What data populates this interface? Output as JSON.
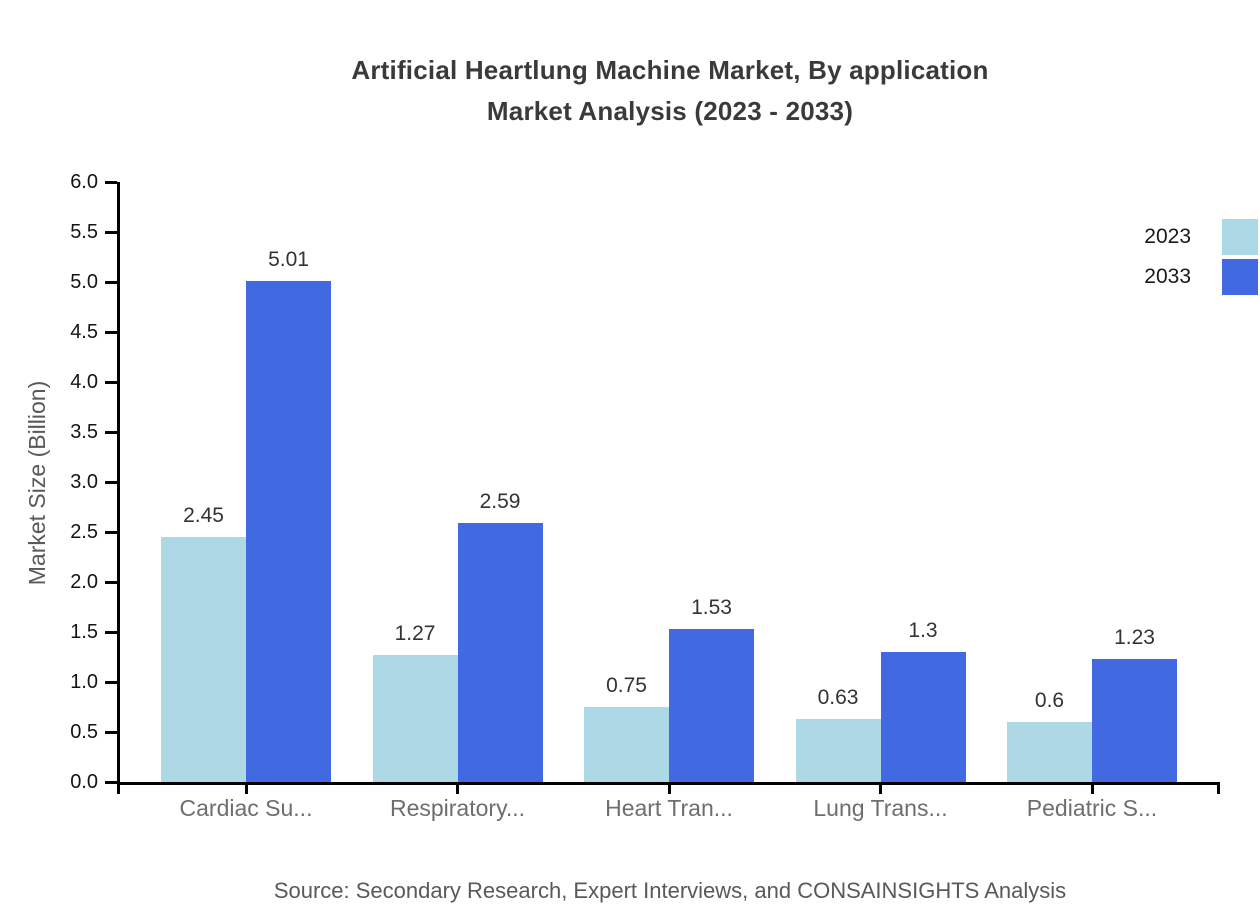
{
  "title": {
    "line1": "Artificial Heartlung Machine Market, By application",
    "line2": "Market Analysis (2023 - 2033)"
  },
  "y_axis": {
    "label": "Market Size (Billion)",
    "ticks": [
      "6.0",
      "5.5",
      "5.0",
      "4.5",
      "4.0",
      "3.5",
      "3.0",
      "2.5",
      "2.0",
      "1.5",
      "1.0",
      "0.5",
      "0.0"
    ],
    "min": 0,
    "max": 6,
    "step": 0.5
  },
  "legend": [
    {
      "label": "2023",
      "color": "#ADD8E6"
    },
    {
      "label": "2033",
      "color": "#4169E1"
    }
  ],
  "source": "Source: Secondary Research, Expert Interviews, and CONSAINSIGHTS Analysis",
  "chart_data": {
    "type": "bar",
    "title": "Artificial Heartlung Machine Market, By application Market Analysis (2023 - 2033)",
    "categories": [
      "Cardiac Su...",
      "Respiratory...",
      "Heart Tran...",
      "Lung Trans...",
      "Pediatric S..."
    ],
    "series": [
      {
        "name": "2023",
        "color": "#ADD8E6",
        "values": [
          2.45,
          1.27,
          0.75,
          0.63,
          0.6
        ],
        "labels": [
          "2.45",
          "1.27",
          "0.75",
          "0.63",
          "0.6"
        ]
      },
      {
        "name": "2033",
        "color": "#4169E1",
        "values": [
          5.01,
          2.59,
          1.53,
          1.3,
          1.23
        ],
        "labels": [
          "5.01",
          "2.59",
          "1.53",
          "1.3",
          "1.23"
        ]
      }
    ],
    "xlabel": "",
    "ylabel": "Market Size (Billion)",
    "ylim": [
      0,
      6
    ],
    "ytick_step": 0.5,
    "grid": false,
    "legend_position": "top-right",
    "axis_color": "#000000"
  }
}
